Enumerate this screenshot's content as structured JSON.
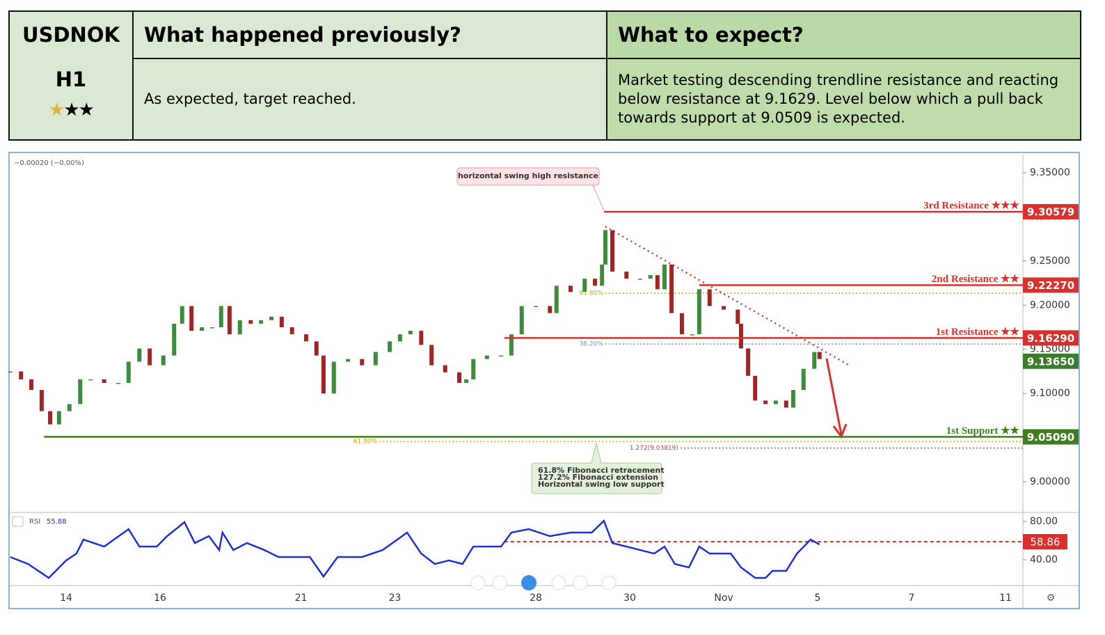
{
  "table": {
    "symbol": "USDNOK",
    "timeframe": "H1",
    "headers": [
      "What happened previously?",
      "What to expect?"
    ],
    "body": [
      "As expected, target reached.",
      "Market testing descending trendline resistance and reacting below resistance at 9.1629. Level below which a pull back towards support at 9.0509 is expected."
    ]
  },
  "chart_data": {
    "type": "candlestick",
    "price_change": "−0.00020 (−0.00%)",
    "up_color": "#3d8b3d",
    "down_color": "#a32424",
    "x": [
      -1.19,
      -0.96,
      -0.74,
      -0.52,
      -0.34,
      -0.15,
      0.07,
      0.3,
      0.52,
      0.81,
      1.11,
      1.33,
      1.56,
      1.78,
      2.07,
      2.3,
      2.47,
      2.67,
      2.89,
      3.11,
      3.3,
      3.48,
      3.7,
      3.93,
      4.15,
      4.37,
      4.59,
      4.81,
      5.11,
      5.33,
      5.48,
      5.7,
      6.0,
      6.3,
      6.59,
      6.89,
      7.11,
      7.33,
      7.56,
      7.78,
      8.07,
      8.37,
      8.52,
      8.67,
      8.96,
      9.26,
      9.48,
      9.7,
      10.0,
      10.3,
      10.44,
      10.74,
      11.04,
      11.26,
      11.41,
      11.48,
      11.63,
      11.93,
      12.22,
      12.44,
      12.59,
      12.74,
      12.89,
      13.11,
      13.33,
      13.48,
      13.7,
      14.0,
      14.3,
      14.37,
      14.52,
      14.67,
      14.89,
      15.11,
      15.33,
      15.48,
      15.7,
      15.93,
      16.04
    ],
    "values": [
      9.125,
      9.116,
      9.104,
      9.08,
      9.065,
      9.08,
      9.088,
      9.116,
      9.116,
      9.112,
      9.112,
      9.136,
      9.151,
      9.132,
      9.143,
      9.179,
      9.199,
      9.171,
      9.175,
      9.175,
      9.199,
      9.167,
      9.183,
      9.179,
      9.183,
      9.187,
      9.175,
      9.167,
      9.159,
      9.143,
      9.1,
      9.136,
      9.139,
      9.132,
      9.147,
      9.159,
      9.167,
      9.171,
      9.155,
      9.132,
      9.124,
      9.112,
      9.116,
      9.139,
      9.143,
      9.143,
      9.167,
      9.199,
      9.199,
      9.191,
      9.222,
      9.215,
      9.23,
      9.222,
      9.246,
      9.285,
      9.238,
      9.23,
      9.23,
      9.234,
      9.218,
      9.246,
      9.191,
      9.167,
      9.167,
      9.218,
      9.199,
      9.195,
      9.179,
      9.151,
      9.12,
      9.092,
      9.088,
      9.092,
      9.084,
      9.104,
      9.128,
      9.147,
      9.139
    ],
    "xlim": [
      -1.2,
      20.37
    ],
    "xticks": [
      {
        "value": 0,
        "label": "14"
      },
      {
        "value": 2,
        "label": "16"
      },
      {
        "value": 5,
        "label": "21"
      },
      {
        "value": 7,
        "label": "23"
      },
      {
        "value": 10,
        "label": "28"
      },
      {
        "value": 12,
        "label": "30"
      },
      {
        "value": 14,
        "label": "Nov"
      },
      {
        "value": 16,
        "label": "5"
      },
      {
        "value": 18,
        "label": "7"
      },
      {
        "value": 20,
        "label": "11"
      }
    ],
    "ylim": [
      8.9661,
      9.3705
    ],
    "yticks": [
      {
        "value": 9.0,
        "label": "9.00000"
      },
      {
        "value": 9.05,
        "label": "9.05000"
      },
      {
        "value": 9.1,
        "label": "9.10000"
      },
      {
        "value": 9.15,
        "label": "9.15000"
      },
      {
        "value": 9.2,
        "label": "9.20000"
      },
      {
        "value": 9.25,
        "label": "9.25000"
      },
      {
        "value": 9.3,
        "label": "9.30000"
      },
      {
        "value": 9.35,
        "label": "9.35000"
      }
    ],
    "current_price": {
      "value": 9.1365,
      "label": "9.13650",
      "color": "#3c7d2c"
    },
    "levels": [
      {
        "label": "3rd Resistance ★★★",
        "price": {
          "value": 9.30579,
          "label": "9.30579"
        },
        "start": 11.45,
        "color": "#d9302c"
      },
      {
        "label": "2nd Resistance ★★",
        "price": {
          "value": 9.2227,
          "label": "9.22270"
        },
        "start": 13.48,
        "color": "#d9302c"
      },
      {
        "label": "1st Resistance ★★",
        "price": {
          "value": 9.1629,
          "label": "9.16290"
        },
        "start": 9.33,
        "color": "#d9302c"
      },
      {
        "label": "1st Support ★★",
        "price": {
          "value": 9.0509,
          "label": "9.05090"
        },
        "start": -0.47,
        "color": "#3f7d20"
      }
    ],
    "fib_levels": [
      {
        "label": "61.80%",
        "value": 9.2135,
        "start": 11.48,
        "color": "#c8a800"
      },
      {
        "label": "38.20%",
        "value": 9.156,
        "start": 11.48,
        "color": "#6a8fd0"
      },
      {
        "label": "61.80%",
        "value": 9.0457,
        "start": 6.67,
        "color": "#e0a000"
      },
      {
        "label": "1.272(9.03819)",
        "value": 9.03819,
        "start": 13.08,
        "color": "#c04050"
      }
    ],
    "trendline": {
      "x": [
        11.48,
        16.67
      ],
      "y": [
        9.289,
        9.132
      ],
      "color": "#e03030"
    },
    "annotations": {
      "swing_high": "horizontal swing high resistance",
      "support_note": [
        "61.8% Fibonacci retracement",
        "127.2% Fibonacci extension",
        "Horizontal swing low support"
      ]
    },
    "rsi": {
      "name": "RSI",
      "last": 55.88,
      "color": "#1f2fd6",
      "x": [
        -1.19,
        -0.81,
        -0.37,
        0,
        0.22,
        0.37,
        0.81,
        1.33,
        1.56,
        1.93,
        2.15,
        2.52,
        2.74,
        3.04,
        3.26,
        3.33,
        3.56,
        3.85,
        4.22,
        4.52,
        4.81,
        5.19,
        5.48,
        5.78,
        6.3,
        6.74,
        7.26,
        7.56,
        7.85,
        8.15,
        8.44,
        8.67,
        9.26,
        9.48,
        9.85,
        10.3,
        10.74,
        11.19,
        11.45,
        11.63,
        12.22,
        12.52,
        12.74,
        12.96,
        13.26,
        13.48,
        13.7,
        14.15,
        14.37,
        14.67,
        14.89,
        15.04,
        15.33,
        15.56,
        15.85,
        16.04
      ],
      "values": [
        42.9,
        35.6,
        21.1,
        39.3,
        46.5,
        61.1,
        53.8,
        72,
        53.8,
        53.8,
        64.7,
        79.3,
        57.5,
        64.7,
        50.2,
        68.4,
        50.2,
        57.5,
        50.2,
        42.9,
        42.9,
        42.9,
        22.5,
        42.9,
        42.9,
        50.2,
        68.4,
        46.5,
        35.6,
        39.3,
        35.6,
        53.8,
        53.8,
        68.4,
        72,
        64.7,
        68.4,
        68.4,
        80.7,
        57.5,
        50.2,
        46.5,
        53.8,
        35.6,
        32,
        53.8,
        46.5,
        46.5,
        32,
        21.1,
        21.1,
        28.4,
        28.4,
        46.5,
        61.1,
        56
      ],
      "ylim": [
        13.8,
        88.7
      ],
      "yticks": [
        {
          "value": 80,
          "label": "80.00"
        },
        {
          "value": 40,
          "label": "40.00"
        }
      ],
      "level": {
        "value": 58.86,
        "label": "58.86",
        "start": 9.33,
        "color": "#d9302c"
      }
    }
  }
}
